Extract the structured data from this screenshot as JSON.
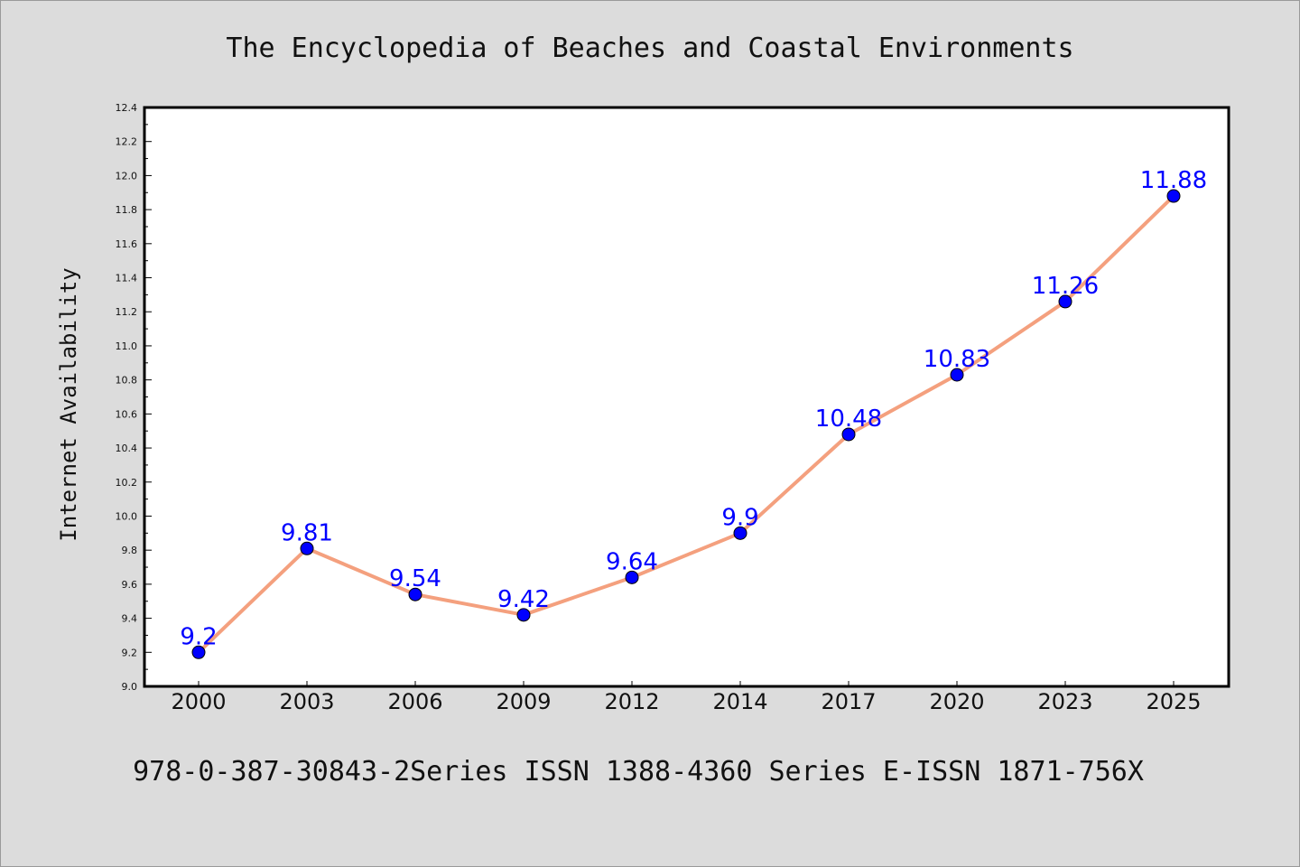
{
  "chart_data": {
    "type": "line",
    "title": "The Encyclopedia of Beaches and Coastal Environments",
    "ylabel": "Internet Availability",
    "xlabel": "",
    "footer": "978-0-387-30843-2Series ISSN 1388-4360 Series E-ISSN 1871-756X",
    "categories": [
      "2000",
      "2003",
      "2006",
      "2009",
      "2012",
      "2014",
      "2017",
      "2020",
      "2023",
      "2025"
    ],
    "series": [
      {
        "values": [
          9.2,
          9.81,
          9.54,
          9.42,
          9.64,
          9.9,
          10.48,
          10.83,
          11.26,
          11.88
        ],
        "labels": [
          "9.2",
          "9.81",
          "9.54",
          "9.42",
          "9.64",
          "9.9",
          "10.48",
          "10.83",
          "11.26",
          "11.88"
        ]
      }
    ],
    "ylim": [
      9.0,
      12.4
    ],
    "yticks": [
      "9.0",
      "9.2",
      "9.4",
      "9.6",
      "9.8",
      "10.0",
      "10.2",
      "10.4",
      "10.6",
      "10.8",
      "11.0",
      "11.2",
      "11.4",
      "11.6",
      "11.8",
      "12.0",
      "12.2",
      "12.4"
    ],
    "grid": false,
    "colors": {
      "background": "#dcdcdc",
      "plot_background": "#ffffff",
      "line": "#f4a07e",
      "marker": "#0000ff",
      "data_label": "#0000ff"
    }
  }
}
